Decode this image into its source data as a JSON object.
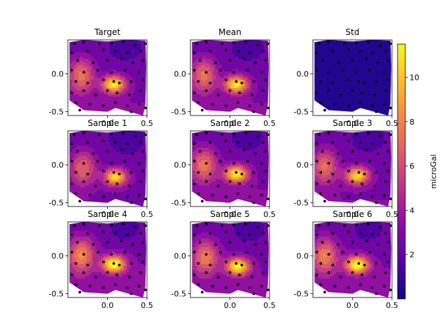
{
  "figure": {
    "colorbar": {
      "label": "microGal",
      "ticks": [
        2,
        4,
        6,
        8,
        10
      ],
      "range": [
        0.0,
        11.5
      ],
      "colormap": "plasma"
    }
  },
  "chart_data": {
    "type": "contour",
    "xlim": [
      -0.5,
      0.5
    ],
    "ylim": [
      -0.55,
      0.45
    ],
    "x_ticks": [
      "0.0",
      "0.5"
    ],
    "y_ticks": [
      "0.0",
      "-0.5"
    ],
    "panels": [
      {
        "title": "Target",
        "mode": "field",
        "scale": 1.0,
        "shift": [
          0.0,
          0.0
        ]
      },
      {
        "title": "Mean",
        "mode": "field",
        "scale": 1.0,
        "shift": [
          0.0,
          0.0
        ]
      },
      {
        "title": "Std",
        "mode": "std",
        "scale": 0.0,
        "shift": [
          0.0,
          0.0
        ]
      },
      {
        "title": "Sample 1",
        "mode": "field",
        "scale": 0.92,
        "shift": [
          0.02,
          -0.02
        ]
      },
      {
        "title": "Sample 2",
        "mode": "field",
        "scale": 1.02,
        "shift": [
          0.0,
          0.02
        ]
      },
      {
        "title": "Sample 3",
        "mode": "field",
        "scale": 0.96,
        "shift": [
          -0.02,
          0.0
        ]
      },
      {
        "title": "Sample 4",
        "mode": "field",
        "scale": 1.12,
        "shift": [
          0.0,
          0.03
        ]
      },
      {
        "title": "Sample 5",
        "mode": "field",
        "scale": 1.05,
        "shift": [
          0.02,
          0.0
        ]
      },
      {
        "title": "Sample 6",
        "mode": "field",
        "scale": 1.1,
        "shift": [
          -0.02,
          0.02
        ]
      }
    ],
    "stations": [
      [
        -0.42,
        0.4
      ],
      [
        -0.3,
        0.42
      ],
      [
        -0.1,
        0.4
      ],
      [
        0.05,
        0.41
      ],
      [
        0.2,
        0.42
      ],
      [
        0.35,
        0.38
      ],
      [
        -0.45,
        0.28
      ],
      [
        -0.25,
        0.3
      ],
      [
        -0.05,
        0.32
      ],
      [
        0.1,
        0.3
      ],
      [
        0.25,
        0.28
      ],
      [
        0.42,
        0.3
      ],
      [
        -0.38,
        0.18
      ],
      [
        -0.18,
        0.15
      ],
      [
        0.0,
        0.18
      ],
      [
        0.18,
        0.2
      ],
      [
        0.32,
        0.15
      ],
      [
        0.45,
        0.18
      ],
      [
        -0.45,
        0.05
      ],
      [
        -0.3,
        0.02
      ],
      [
        -0.12,
        0.05
      ],
      [
        0.05,
        0.02
      ],
      [
        0.22,
        0.05
      ],
      [
        0.4,
        0.02
      ],
      [
        -0.4,
        -0.1
      ],
      [
        -0.25,
        -0.12
      ],
      [
        -0.05,
        -0.08
      ],
      [
        0.08,
        -0.1
      ],
      [
        0.15,
        -0.12
      ],
      [
        0.3,
        -0.1
      ],
      [
        0.45,
        -0.08
      ],
      [
        -0.45,
        -0.25
      ],
      [
        -0.3,
        -0.22
      ],
      [
        -0.15,
        -0.28
      ],
      [
        0.0,
        -0.22
      ],
      [
        0.12,
        -0.25
      ],
      [
        0.28,
        -0.28
      ],
      [
        0.42,
        -0.22
      ],
      [
        -0.4,
        -0.38
      ],
      [
        -0.22,
        -0.4
      ],
      [
        -0.05,
        -0.42
      ],
      [
        0.1,
        -0.38
      ],
      [
        0.25,
        -0.42
      ],
      [
        0.4,
        -0.4
      ],
      [
        -0.35,
        -0.48
      ],
      [
        0.3,
        -0.5
      ],
      [
        0.48,
        -0.45
      ],
      [
        0.48,
        0.4
      ]
    ]
  }
}
